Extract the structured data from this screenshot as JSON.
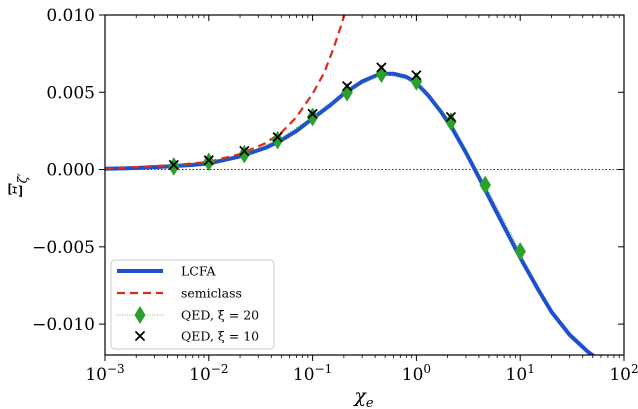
{
  "chart_data": {
    "type": "line",
    "title": "",
    "xlabel": "χ_e",
    "ylabel": "Ξ_ζ′",
    "xscale": "log",
    "xlim": [
      0.001,
      100
    ],
    "ylim": [
      -0.012,
      0.01
    ],
    "grid": false,
    "legend_position": "lower-left",
    "x_ticks": [
      0.001,
      0.01,
      0.1,
      1,
      10,
      100
    ],
    "x_tick_labels": [
      {
        "base": "10",
        "exp": "−3"
      },
      {
        "base": "10",
        "exp": "−2"
      },
      {
        "base": "10",
        "exp": "−1"
      },
      {
        "base": "10",
        "exp": "0"
      },
      {
        "base": "10",
        "exp": "1"
      },
      {
        "base": "10",
        "exp": "2"
      }
    ],
    "y_ticks": [
      -0.01,
      -0.005,
      0,
      0.005,
      0.01
    ],
    "y_tick_labels": [
      "−0.010",
      "−0.005",
      "0.000",
      "0.005",
      "0.010"
    ],
    "reference_line": {
      "y": 0,
      "style": "dotted"
    },
    "series": [
      {
        "name": "LCFA",
        "kind": "line",
        "color": "#1f4fd1",
        "x": [
          0.001,
          0.002,
          0.004,
          0.007,
          0.01,
          0.02,
          0.035,
          0.05,
          0.07,
          0.1,
          0.15,
          0.2,
          0.3,
          0.45,
          0.6,
          0.8,
          1.0,
          1.3,
          1.7,
          2.2,
          3.0,
          4.0,
          5.0,
          7.0,
          10,
          15,
          20,
          30,
          45,
          60
        ],
        "y": [
          5e-05,
          0.0001,
          0.0002,
          0.0003,
          0.0004,
          0.00085,
          0.0014,
          0.0019,
          0.0025,
          0.0033,
          0.0042,
          0.0049,
          0.0057,
          0.0062,
          0.0062,
          0.006,
          0.0056,
          0.0048,
          0.0038,
          0.0027,
          0.0011,
          -0.0005,
          -0.0018,
          -0.0037,
          -0.0057,
          -0.0078,
          -0.0092,
          -0.0107,
          -0.0118,
          -0.0124
        ]
      },
      {
        "name": "semiclass",
        "kind": "dashed",
        "color": "#dd2a1b",
        "x": [
          0.001,
          0.005,
          0.01,
          0.02,
          0.035,
          0.05,
          0.07,
          0.1,
          0.13,
          0.16,
          0.19,
          0.21
        ],
        "y": [
          5e-05,
          0.0003,
          0.0005,
          0.001,
          0.0017,
          0.0024,
          0.0034,
          0.0049,
          0.0063,
          0.0079,
          0.0094,
          0.0104
        ]
      },
      {
        "name": "QED, ξ = 20",
        "kind": "markers",
        "marker": "diamond",
        "color": "#2ca02c",
        "x": [
          0.0046,
          0.01,
          0.022,
          0.046,
          0.1,
          0.215,
          0.46,
          1.0,
          2.15,
          4.6,
          10
        ],
        "y": [
          0.0002,
          0.0005,
          0.001,
          0.0019,
          0.0034,
          0.005,
          0.0062,
          0.0057,
          0.0031,
          -0.001,
          -0.0053
        ]
      },
      {
        "name": "QED, ξ = 10",
        "kind": "markers",
        "marker": "x",
        "color": "#000000",
        "x": [
          0.0046,
          0.01,
          0.022,
          0.046,
          0.1,
          0.215,
          0.46,
          1.0,
          2.15
        ],
        "y": [
          0.0003,
          0.0006,
          0.0012,
          0.0021,
          0.0036,
          0.0054,
          0.0066,
          0.0061,
          0.0034
        ]
      }
    ]
  }
}
